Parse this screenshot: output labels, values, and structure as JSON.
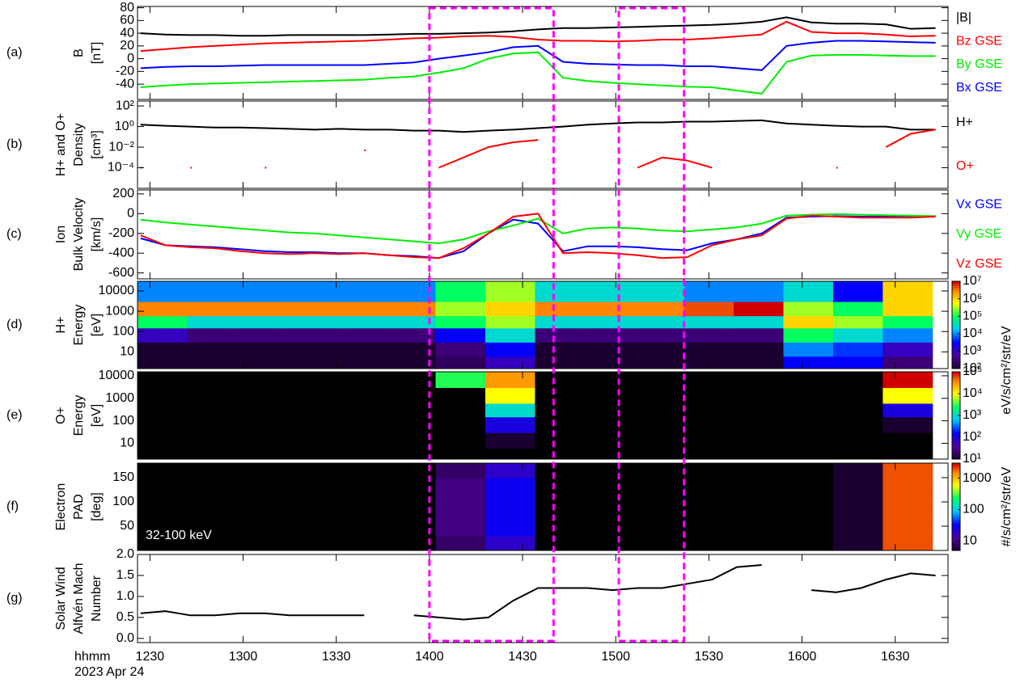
{
  "time_axis": {
    "xlim": [
      746,
      1007
    ],
    "xticks": [
      {
        "value": 750,
        "label": "1230"
      },
      {
        "value": 780,
        "label": "1300"
      },
      {
        "value": 810,
        "label": "1330"
      },
      {
        "value": 840,
        "label": "1400"
      },
      {
        "value": 870,
        "label": "1430"
      },
      {
        "value": 900,
        "label": "1500"
      },
      {
        "value": 930,
        "label": "1530"
      },
      {
        "value": 960,
        "label": "1600"
      },
      {
        "value": 990,
        "label": "1630"
      }
    ],
    "label": "hhmm",
    "date": "2023 Apr 24"
  },
  "highlights": [
    [
      840,
      880
    ],
    [
      901,
      922
    ]
  ],
  "chart_data": [
    {
      "type": "line",
      "label": "(a)",
      "ylabel": [
        "B",
        "[nT]"
      ],
      "ylim": [
        -64,
        82
      ],
      "yticks": [
        80,
        60,
        40,
        20,
        0,
        -20,
        -40
      ],
      "x": [
        747,
        755,
        763,
        771,
        779,
        787,
        795,
        803,
        811,
        819,
        827,
        835,
        843,
        851,
        859,
        867,
        875,
        883,
        891,
        899,
        907,
        915,
        923,
        931,
        939,
        947,
        955,
        963,
        971,
        979,
        987,
        995,
        1003
      ],
      "series": [
        {
          "name": "|B|",
          "color": "#000000",
          "values": [
            40,
            38,
            37,
            37,
            36,
            36,
            37,
            37,
            37,
            37,
            38,
            39,
            39,
            40,
            41,
            43,
            46,
            48,
            48,
            49,
            50,
            51,
            52,
            53,
            55,
            58,
            65,
            57,
            55,
            55,
            54,
            47,
            48
          ]
        },
        {
          "name": "Bz GSE",
          "color": "#ff0000",
          "values": [
            12,
            15,
            18,
            20,
            22,
            24,
            25,
            26,
            27,
            28,
            30,
            32,
            33,
            35,
            36,
            34,
            30,
            28,
            28,
            27,
            28,
            30,
            30,
            32,
            35,
            38,
            58,
            42,
            40,
            40,
            38,
            35,
            36
          ]
        },
        {
          "name": "By GSE",
          "color": "#00ee00",
          "values": [
            -45,
            -42,
            -40,
            -39,
            -38,
            -37,
            -36,
            -35,
            -34,
            -33,
            -30,
            -28,
            -22,
            -15,
            0,
            8,
            10,
            -30,
            -35,
            -38,
            -40,
            -42,
            -44,
            -45,
            -50,
            -55,
            -5,
            5,
            6,
            6,
            5,
            4,
            4
          ]
        },
        {
          "name": "Bx GSE",
          "color": "#0000ff",
          "values": [
            -15,
            -13,
            -12,
            -12,
            -11,
            -10,
            -10,
            -10,
            -10,
            -10,
            -8,
            -6,
            0,
            5,
            10,
            18,
            20,
            -5,
            -8,
            -9,
            -10,
            -10,
            -12,
            -12,
            -15,
            -18,
            20,
            25,
            28,
            28,
            27,
            26,
            25
          ]
        }
      ]
    },
    {
      "type": "line",
      "label": "(b)",
      "ylabel": [
        "H+ and O+",
        "Density",
        "[cm³]"
      ],
      "ylog": true,
      "ylim": [
        1e-06,
        300
      ],
      "yticks": [
        {
          "value": 100,
          "label": "10²"
        },
        {
          "value": 1,
          "label": "10⁰"
        },
        {
          "value": 0.01,
          "label": "10⁻²"
        },
        {
          "value": 0.0001,
          "label": "10⁻⁴"
        }
      ],
      "x": [
        747,
        755,
        763,
        771,
        779,
        787,
        795,
        803,
        811,
        819,
        827,
        835,
        843,
        851,
        859,
        867,
        875,
        883,
        891,
        899,
        907,
        915,
        923,
        931,
        939,
        947,
        955,
        963,
        971,
        979,
        987,
        995,
        1003
      ],
      "series": [
        {
          "name": "H+",
          "color": "#000000",
          "values": [
            1.5,
            1.2,
            1,
            0.8,
            0.8,
            0.7,
            0.6,
            0.5,
            0.6,
            0.5,
            0.5,
            0.4,
            0.4,
            0.3,
            0.4,
            0.5,
            0.7,
            1,
            1.5,
            2,
            2.5,
            2.5,
            3,
            3,
            3.5,
            4,
            2,
            1.5,
            1.2,
            1,
            1,
            0.5,
            0.5
          ]
        },
        {
          "name": "O+",
          "color": "#ff0000",
          "values": [
            0.0001,
            null,
            0.0001,
            null,
            null,
            0.0001,
            null,
            null,
            null,
            0.005,
            null,
            null,
            0.0001,
            0.001,
            0.01,
            0.03,
            0.05,
            null,
            null,
            null,
            0.0001,
            0.001,
            0.0005,
            0.0001,
            null,
            null,
            null,
            null,
            0.0001,
            null,
            0.01,
            0.2,
            0.5
          ]
        }
      ]
    },
    {
      "type": "line",
      "label": "(c)",
      "ylabel": [
        "Ion",
        "Bulk Velocity",
        "[km/s]"
      ],
      "ylim": [
        -660,
        240
      ],
      "yticks": [
        200,
        0,
        -200,
        -400,
        -600
      ],
      "x": [
        747,
        755,
        763,
        771,
        779,
        787,
        795,
        803,
        811,
        819,
        827,
        835,
        843,
        851,
        859,
        867,
        875,
        883,
        891,
        899,
        907,
        915,
        923,
        931,
        939,
        947,
        955,
        963,
        971,
        979,
        987,
        995,
        1003
      ],
      "series": [
        {
          "name": "Vx GSE",
          "color": "#0000ff",
          "values": [
            -250,
            -320,
            -330,
            -340,
            -360,
            -380,
            -390,
            -390,
            -400,
            -400,
            -420,
            -430,
            -450,
            -380,
            -200,
            -60,
            -100,
            -380,
            -330,
            -330,
            -340,
            -360,
            -370,
            -300,
            -260,
            -200,
            -40,
            -30,
            -25,
            -30,
            -30,
            -30,
            -25
          ]
        },
        {
          "name": "Vy GSE",
          "color": "#00ee00",
          "values": [
            -60,
            -90,
            -110,
            -130,
            -150,
            -170,
            -190,
            -200,
            -220,
            -240,
            -260,
            -280,
            -300,
            -260,
            -180,
            -120,
            -50,
            -200,
            -150,
            -140,
            -150,
            -170,
            -180,
            -160,
            -140,
            -100,
            -20,
            -10,
            -5,
            -10,
            -15,
            -20,
            -25
          ]
        },
        {
          "name": "Vz GSE",
          "color": "#ff0000",
          "values": [
            -220,
            -320,
            -340,
            -350,
            -380,
            -400,
            -410,
            -400,
            -410,
            -400,
            -420,
            -440,
            -450,
            -350,
            -200,
            -30,
            0,
            -400,
            -390,
            -400,
            -420,
            -450,
            -440,
            -320,
            -260,
            -220,
            -50,
            -20,
            -30,
            -40,
            -40,
            -40,
            -30
          ]
        }
      ]
    },
    {
      "type": "heatmap",
      "label": "(d)",
      "ylabel": [
        "H+",
        "Energy",
        "[eV]"
      ],
      "ylog": true,
      "ylim": [
        1.5,
        30000
      ],
      "yticks": [
        10000,
        1000,
        100,
        10
      ],
      "x_bins": [
        746,
        762,
        778,
        794,
        810,
        826,
        842,
        858,
        874,
        890,
        906,
        922,
        938,
        954,
        970,
        986,
        1002
      ],
      "y_bins": [
        1.5,
        6,
        30,
        150,
        600,
        3000,
        30000
      ],
      "z": [
        [
          100,
          100,
          100,
          100,
          100,
          100,
          200,
          1000,
          100,
          100,
          100,
          100,
          100,
          3000,
          3000,
          300
        ],
        [
          100,
          100,
          100,
          100,
          100,
          100,
          300,
          3000,
          100,
          100,
          100,
          100,
          100,
          10000,
          5000,
          1000
        ],
        [
          1000,
          300,
          300,
          300,
          300,
          300,
          3000,
          30000,
          300,
          300,
          300,
          300,
          300,
          100000,
          30000,
          10000
        ],
        [
          100000,
          30000,
          30000,
          30000,
          30000,
          30000,
          100000,
          300000,
          30000,
          30000,
          30000,
          30000,
          30000,
          1000000,
          300000,
          100000
        ],
        [
          3000000,
          3000000,
          3000000,
          3000000,
          3000000,
          3000000,
          300000,
          1000000,
          3000000,
          3000000,
          3000000,
          5000000,
          10000000,
          300000,
          100000,
          1000000
        ],
        [
          10000,
          10000,
          10000,
          10000,
          10000,
          10000,
          100000,
          300000,
          30000,
          30000,
          30000,
          10000,
          10000,
          30000,
          3000,
          1000000
        ]
      ],
      "zlim": [
        100,
        10000000
      ],
      "zticks": [
        {
          "value": 10000000,
          "label": "10⁷"
        },
        {
          "value": 1000000,
          "label": "10⁶"
        },
        {
          "value": 100000,
          "label": "10⁵"
        },
        {
          "value": 10000,
          "label": "10⁴"
        },
        {
          "value": 1000,
          "label": "10³"
        },
        {
          "value": 100,
          "label": "10²"
        }
      ],
      "zlabel": "eV/s/cm²/str/eV"
    },
    {
      "type": "heatmap",
      "label": "(e)",
      "ylabel": [
        "O+",
        "Energy",
        "[eV]"
      ],
      "ylog": true,
      "ylim": [
        2,
        15000
      ],
      "yticks": [
        10000,
        1000,
        100,
        10
      ],
      "x_bins": [
        746,
        762,
        778,
        794,
        810,
        826,
        842,
        858,
        874,
        890,
        906,
        922,
        938,
        954,
        970,
        986,
        1002
      ],
      "y_bins": [
        2,
        6,
        30,
        150,
        600,
        3000,
        15000
      ],
      "z": [
        [
          1,
          1,
          1,
          1,
          1,
          1,
          1,
          1,
          1,
          1,
          1,
          1,
          1,
          1,
          1,
          1
        ],
        [
          1,
          1,
          1,
          1,
          1,
          1,
          1,
          10,
          1,
          1,
          1,
          1,
          1,
          1,
          1,
          1
        ],
        [
          1,
          1,
          1,
          1,
          1,
          1,
          1,
          100,
          1,
          1,
          1,
          1,
          1,
          1,
          1,
          10
        ],
        [
          1,
          1,
          1,
          1,
          1,
          1,
          1,
          1000,
          1,
          1,
          1,
          1,
          1,
          1,
          1,
          100
        ],
        [
          1,
          1,
          1,
          1,
          1,
          1,
          1,
          10000,
          1,
          1,
          1,
          1,
          1,
          1,
          1,
          10000
        ],
        [
          1,
          1,
          1,
          1,
          1,
          1,
          3000,
          30000,
          1,
          1,
          1,
          1,
          1,
          1,
          1,
          100000
        ]
      ],
      "zlim": [
        10,
        100000
      ],
      "zticks": [
        {
          "value": 100000,
          "label": "10⁵"
        },
        {
          "value": 10000,
          "label": "10⁴"
        },
        {
          "value": 1000,
          "label": "10³"
        },
        {
          "value": 100,
          "label": "10²"
        },
        {
          "value": 10,
          "label": "10¹"
        }
      ],
      "zlabel": "eV/s/cm²/str/eV"
    },
    {
      "type": "heatmap",
      "label": "(f)",
      "ylabel": [
        "Electron",
        "PAD",
        "[deg]"
      ],
      "ylim": [
        0,
        180
      ],
      "yticks": [
        150,
        100,
        50
      ],
      "annotation": "32-100 keV",
      "x_bins": [
        746,
        762,
        778,
        794,
        810,
        826,
        842,
        858,
        874,
        890,
        906,
        922,
        938,
        954,
        970,
        986,
        1002
      ],
      "y_bins": [
        0,
        30,
        60,
        90,
        120,
        150,
        180
      ],
      "z": [
        [
          3,
          3,
          3,
          3,
          3,
          3,
          8,
          20,
          3,
          3,
          3,
          3,
          3,
          3,
          5,
          2000
        ],
        [
          3,
          3,
          3,
          3,
          3,
          3,
          10,
          30,
          3,
          3,
          3,
          3,
          3,
          3,
          5,
          2000
        ],
        [
          3,
          3,
          3,
          3,
          3,
          3,
          10,
          30,
          3,
          3,
          3,
          3,
          3,
          3,
          5,
          2000
        ],
        [
          3,
          3,
          3,
          3,
          3,
          3,
          10,
          30,
          3,
          3,
          3,
          3,
          3,
          3,
          5,
          2000
        ],
        [
          3,
          3,
          3,
          3,
          3,
          3,
          10,
          30,
          3,
          3,
          3,
          3,
          3,
          3,
          5,
          2000
        ],
        [
          3,
          3,
          3,
          3,
          3,
          3,
          8,
          20,
          3,
          3,
          3,
          3,
          3,
          3,
          5,
          2000
        ]
      ],
      "zlim": [
        5,
        3000
      ],
      "zticks": [
        1000,
        100,
        10
      ],
      "zlabel": "#/s/cm²/str/eV"
    },
    {
      "type": "line",
      "label": "(g)",
      "ylabel": [
        "Solar Wind",
        "Alfvén Mach",
        "Number"
      ],
      "ylim": [
        -0.1,
        2.0
      ],
      "yticks": [
        {
          "value": 2,
          "label": "2.0"
        },
        1.5,
        {
          "value": 1,
          "label": "1.0"
        },
        0.5,
        {
          "value": 0,
          "label": "0.0"
        }
      ],
      "x": [
        747,
        755,
        763,
        771,
        779,
        787,
        795,
        803,
        811,
        819,
        827,
        835,
        843,
        851,
        859,
        867,
        875,
        883,
        891,
        899,
        907,
        915,
        923,
        931,
        939,
        947,
        955,
        963,
        971,
        979,
        987,
        995,
        1003
      ],
      "series": [
        {
          "color": "#000000",
          "values": [
            0.6,
            0.65,
            0.55,
            0.55,
            0.6,
            0.6,
            0.55,
            0.55,
            0.55,
            0.55,
            null,
            0.55,
            0.5,
            0.45,
            0.5,
            0.9,
            1.2,
            1.2,
            1.2,
            1.15,
            1.2,
            1.2,
            1.3,
            1.4,
            1.7,
            1.75,
            null,
            1.15,
            1.1,
            1.2,
            1.4,
            1.55,
            1.5
          ]
        }
      ]
    }
  ]
}
